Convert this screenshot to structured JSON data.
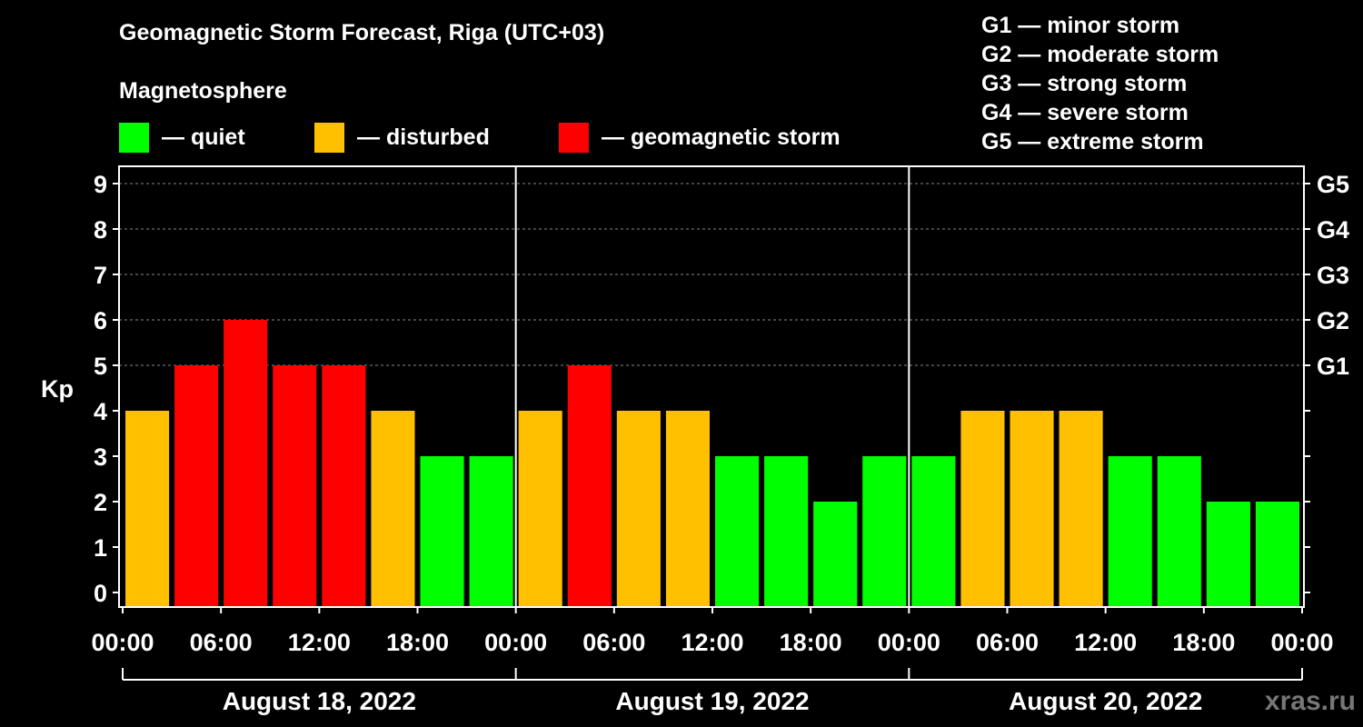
{
  "title": "Geomagnetic Storm Forecast, Riga (UTC+03)",
  "subtitle": "Magnetosphere",
  "watermark": "xras.ru",
  "legend": [
    {
      "label": "— quiet",
      "color": "#00ff00"
    },
    {
      "label": "— disturbed",
      "color": "#ffc000"
    },
    {
      "label": "— geomagnetic storm",
      "color": "#ff0000"
    }
  ],
  "storm_scale": [
    "G1 — minor storm",
    "G2 — moderate storm",
    "G3 — strong storm",
    "G4 — severe storm",
    "G5 — extreme storm"
  ],
  "chart_data": {
    "type": "bar",
    "ylabel": "Kp",
    "ylim": [
      0,
      9
    ],
    "yticks": [
      0,
      1,
      2,
      3,
      4,
      5,
      6,
      7,
      8,
      9
    ],
    "right_axis_labels": [
      {
        "kp": 5,
        "label": "G1"
      },
      {
        "kp": 6,
        "label": "G2"
      },
      {
        "kp": 7,
        "label": "G3"
      },
      {
        "kp": 8,
        "label": "G4"
      },
      {
        "kp": 9,
        "label": "G5"
      }
    ],
    "x_tick_labels": [
      "00:00",
      "06:00",
      "12:00",
      "18:00",
      "00:00",
      "06:00",
      "12:00",
      "18:00",
      "00:00",
      "06:00",
      "12:00",
      "18:00",
      "00:00"
    ],
    "days": [
      "August 18, 2022",
      "August 19, 2022",
      "August 20, 2022"
    ],
    "interval_hours": 3,
    "values": [
      4,
      5,
      6,
      5,
      5,
      4,
      3,
      3,
      4,
      5,
      4,
      4,
      3,
      3,
      2,
      3,
      3,
      4,
      4,
      4,
      3,
      3,
      2,
      2
    ],
    "color_rules": {
      "quiet_max": 3,
      "disturbed": 4,
      "storm_min": 5
    },
    "grid": true,
    "grid_lines_at": [
      5,
      6,
      7,
      8,
      9
    ]
  }
}
